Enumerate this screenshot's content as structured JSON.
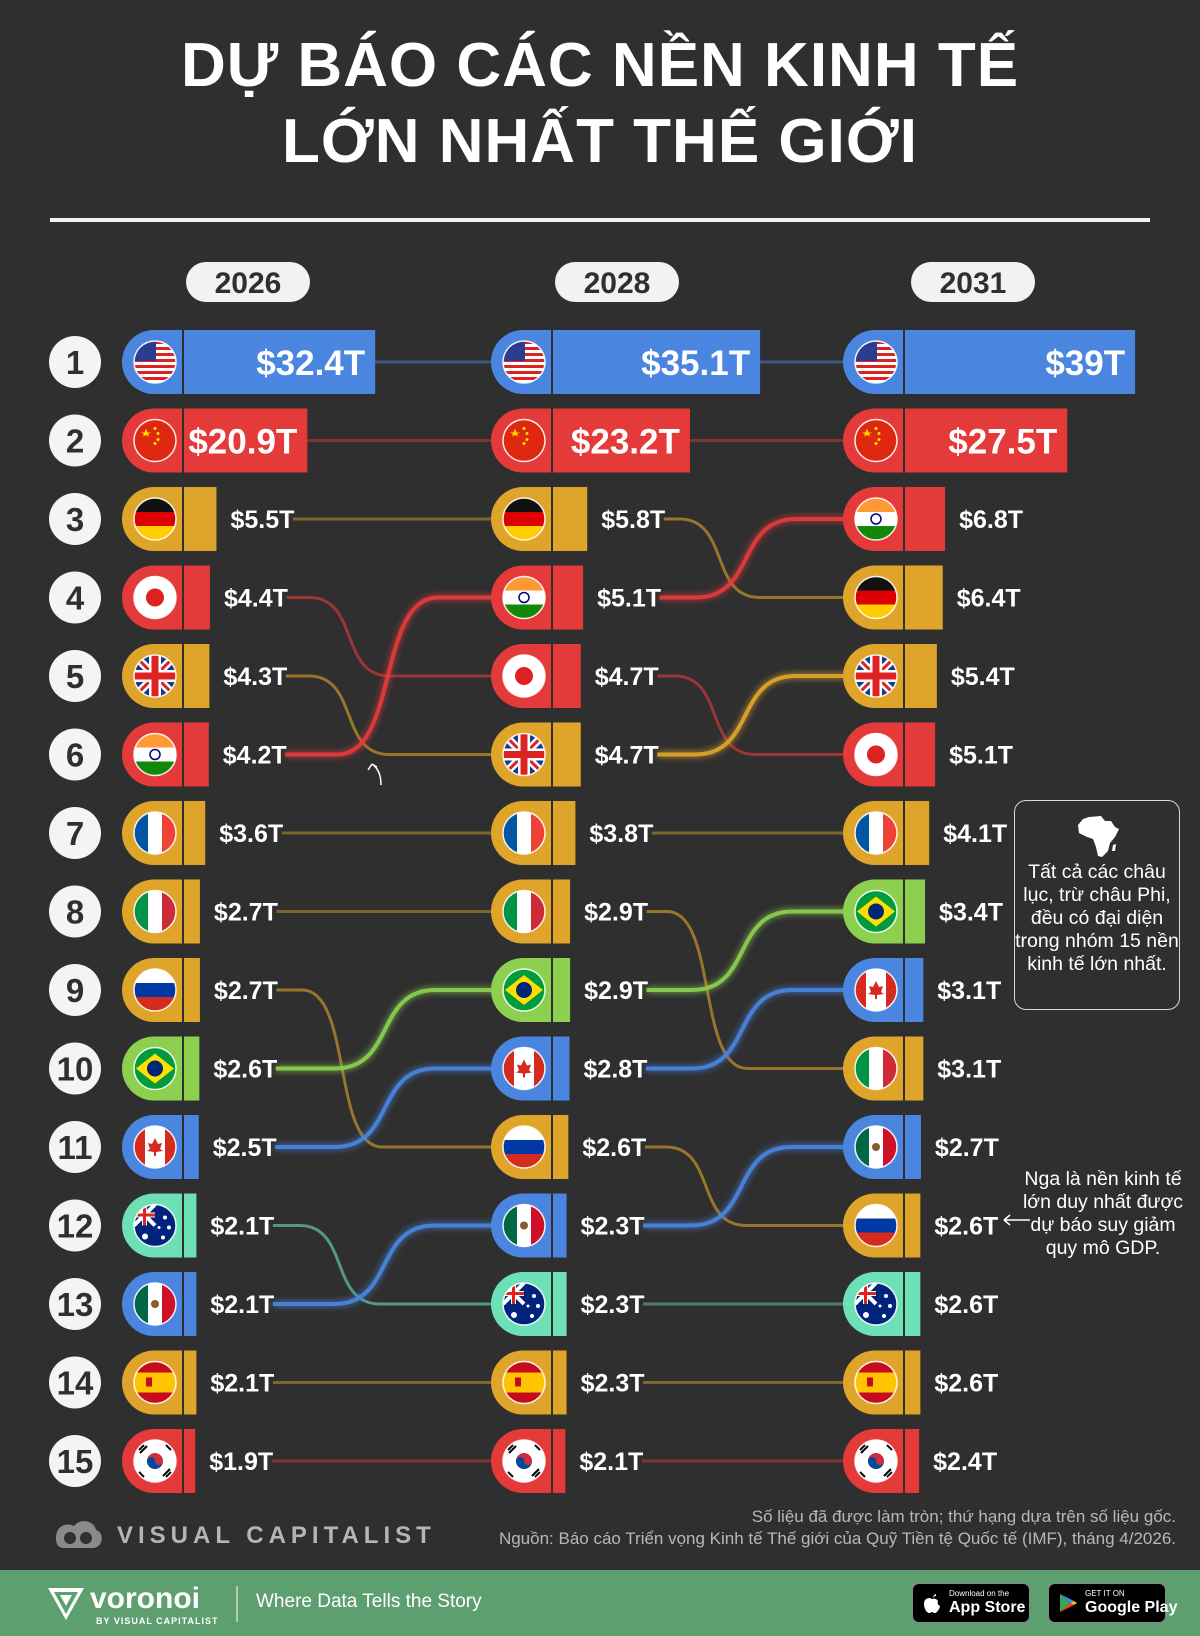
{
  "title": {
    "line1": "DỰ BÁO CÁC NỀN KINH TẾ",
    "line2": "LỚN NHẤT THẾ GIỚI"
  },
  "colors": {
    "background": "#2f2f30",
    "usa": "#4a86e0",
    "china": "#e53a3a",
    "germany": "#dfa52b",
    "japan": "#e53a3a",
    "uk": "#dfa52b",
    "india": "#e53a3a",
    "france": "#dfa52b",
    "italy": "#dfa52b",
    "russia": "#dfa52b",
    "brazil": "#8dd04f",
    "canada": "#4a86e0",
    "australia": "#6ee0b6",
    "mexico": "#4a86e0",
    "spain": "#dfa52b",
    "south_korea": "#e53a3a"
  },
  "chart_data": {
    "type": "bump",
    "unit": "nghìn tỷ USD",
    "years": [
      "2026",
      "2028",
      "2031"
    ],
    "ranks": [
      "1",
      "2",
      "3",
      "4",
      "5",
      "6",
      "7",
      "8",
      "9",
      "10",
      "11",
      "12",
      "13",
      "14",
      "15"
    ],
    "series": [
      {
        "country": "usa",
        "flag_icon": "flag-usa-icon",
        "ranks": [
          1,
          1,
          1
        ],
        "values": [
          32.4,
          35.1,
          39
        ],
        "labels": [
          "$32.4T",
          "$35.1T",
          "$39T"
        ]
      },
      {
        "country": "china",
        "flag_icon": "flag-china-icon",
        "ranks": [
          2,
          2,
          2
        ],
        "values": [
          20.9,
          23.2,
          27.5
        ],
        "labels": [
          "$20.9T",
          "$23.2T",
          "$27.5T"
        ]
      },
      {
        "country": "germany",
        "flag_icon": "flag-germany-icon",
        "ranks": [
          3,
          3,
          4
        ],
        "values": [
          5.5,
          5.8,
          6.4
        ],
        "labels": [
          "$5.5T",
          "$5.8T",
          "$6.4T"
        ]
      },
      {
        "country": "japan",
        "flag_icon": "flag-japan-icon",
        "ranks": [
          4,
          5,
          6
        ],
        "values": [
          4.4,
          4.7,
          5.1
        ],
        "labels": [
          "$4.4T",
          "$4.7T",
          "$5.1T"
        ]
      },
      {
        "country": "uk",
        "flag_icon": "flag-uk-icon",
        "ranks": [
          5,
          6,
          5
        ],
        "values": [
          4.3,
          4.7,
          5.4
        ],
        "labels": [
          "$4.3T",
          "$4.7T",
          "$5.4T"
        ]
      },
      {
        "country": "india",
        "flag_icon": "flag-india-icon",
        "ranks": [
          6,
          4,
          3
        ],
        "values": [
          4.2,
          5.1,
          6.8
        ],
        "labels": [
          "$4.2T",
          "$5.1T",
          "$6.8T"
        ]
      },
      {
        "country": "france",
        "flag_icon": "flag-france-icon",
        "ranks": [
          7,
          7,
          7
        ],
        "values": [
          3.6,
          3.8,
          4.1
        ],
        "labels": [
          "$3.6T",
          "$3.8T",
          "$4.1T"
        ]
      },
      {
        "country": "italy",
        "flag_icon": "flag-italy-icon",
        "ranks": [
          8,
          8,
          10
        ],
        "values": [
          2.7,
          2.9,
          3.1
        ],
        "labels": [
          "$2.7T",
          "$2.9T",
          "$3.1T"
        ]
      },
      {
        "country": "russia",
        "flag_icon": "flag-russia-icon",
        "ranks": [
          9,
          11,
          12
        ],
        "values": [
          2.7,
          2.6,
          2.6
        ],
        "labels": [
          "$2.7T",
          "$2.6T",
          "$2.6T"
        ]
      },
      {
        "country": "brazil",
        "flag_icon": "flag-brazil-icon",
        "ranks": [
          10,
          9,
          8
        ],
        "values": [
          2.6,
          2.9,
          3.4
        ],
        "labels": [
          "$2.6T",
          "$2.9T",
          "$3.4T"
        ]
      },
      {
        "country": "canada",
        "flag_icon": "flag-canada-icon",
        "ranks": [
          11,
          10,
          9
        ],
        "values": [
          2.5,
          2.8,
          3.1
        ],
        "labels": [
          "$2.5T",
          "$2.8T",
          "$3.1T"
        ]
      },
      {
        "country": "australia",
        "flag_icon": "flag-australia-icon",
        "ranks": [
          12,
          13,
          13
        ],
        "values": [
          2.1,
          2.3,
          2.6
        ],
        "labels": [
          "$2.1T",
          "$2.3T",
          "$2.6T"
        ]
      },
      {
        "country": "mexico",
        "flag_icon": "flag-mexico-icon",
        "ranks": [
          13,
          12,
          11
        ],
        "values": [
          2.1,
          2.3,
          2.7
        ],
        "labels": [
          "$2.1T",
          "$2.3T",
          "$2.7T"
        ]
      },
      {
        "country": "spain",
        "flag_icon": "flag-spain-icon",
        "ranks": [
          14,
          14,
          14
        ],
        "values": [
          2.1,
          2.3,
          2.6
        ],
        "labels": [
          "$2.1T",
          "$2.3T",
          "$2.6T"
        ]
      },
      {
        "country": "south_korea",
        "flag_icon": "flag-south-korea-icon",
        "ranks": [
          15,
          15,
          15
        ],
        "values": [
          1.9,
          2.1,
          2.4
        ],
        "labels": [
          "$1.9T",
          "$2.1T",
          "$2.4T"
        ]
      }
    ]
  },
  "notes": {
    "continents": "Tất cả các châu lục, trừ châu Phi, đều có đại diện trong nhóm 15 nền kinh tế lớn nhất.",
    "russia": "Nga là nền kinh tế lớn duy nhất được dự báo suy giảm quy mô GDP."
  },
  "source": {
    "line1": "Số liệu đã được làm tròn; thứ hạng dựa trên số liệu gốc.",
    "line2": "Nguồn: Báo cáo Triển vọng Kinh tế Thế giới của Quỹ Tiền tệ Quốc tế (IMF), tháng 4/2026."
  },
  "brand": {
    "visual_capitalist": "VISUAL CAPITALIST",
    "voronoi": "voronoi",
    "voronoi_sub": "BY VISUAL CAPITALIST",
    "tagline": "Where Data Tells the Story",
    "app_store_small": "Download on the",
    "app_store_big": "App Store",
    "google_play_small": "GET IT ON",
    "google_play_big": "Google Play"
  }
}
